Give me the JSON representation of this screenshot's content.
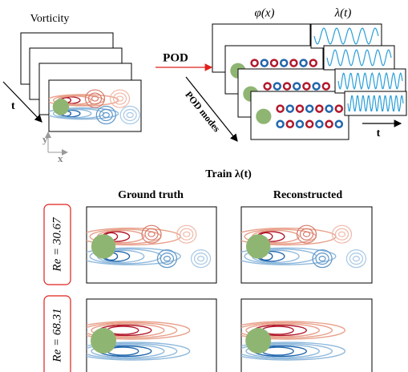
{
  "left": {
    "title": "Vorticity",
    "time_axis": "t",
    "y_axis": "y",
    "x_axis": "x"
  },
  "pod": {
    "arrow_label": "POD",
    "modes_label": "POD modes",
    "spatial_label": "φ(x)",
    "temporal_label": "λ(t)",
    "time_axis": "t"
  },
  "train": {
    "title": "Train λ(t)",
    "columns": [
      "Ground truth",
      "Reconstructed"
    ],
    "rows": [
      {
        "label": "Re = 30.67"
      },
      {
        "label": "Re = 68.31"
      }
    ]
  }
}
